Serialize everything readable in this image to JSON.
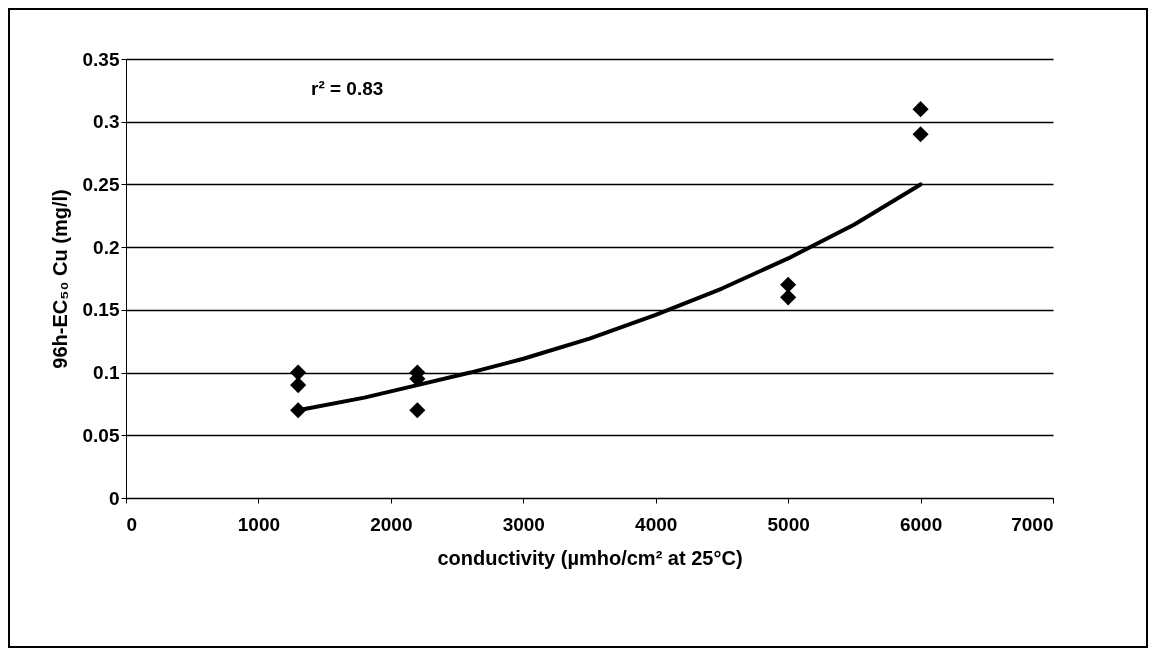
{
  "chart_data": {
    "type": "scatter",
    "xlabel": "conductivity (µmho/cm² at 25°C)",
    "ylabel": "96h-EC₅₀ Cu (mg/l)",
    "annotations": [
      "r² = 0.83"
    ],
    "xlim": [
      0,
      7000
    ],
    "xticks": [
      0,
      1000,
      2000,
      3000,
      4000,
      5000,
      6000,
      7000
    ],
    "ylim": [
      0,
      0.35
    ],
    "yticks": [
      0,
      0.05,
      0.1,
      0.15,
      0.2,
      0.25,
      0.3,
      0.35
    ],
    "grid": "y",
    "series": [
      {
        "type": "scatter",
        "marker": "diamond",
        "color": "#000000",
        "x": [
          1300,
          1300,
          1300,
          2200,
          2200,
          2200,
          5000,
          5000,
          6000,
          6000
        ],
        "values": [
          0.1,
          0.09,
          0.07,
          0.1,
          0.095,
          0.07,
          0.17,
          0.16,
          0.31,
          0.29
        ]
      },
      {
        "type": "line",
        "line_style": "solid",
        "color": "#000000",
        "x": [
          1300,
          1800,
          2200,
          2600,
          3000,
          3500,
          4000,
          4500,
          5000,
          5500,
          6000
        ],
        "values": [
          0.07,
          0.08,
          0.09,
          0.1,
          0.111,
          0.127,
          0.146,
          0.167,
          0.191,
          0.218,
          0.25
        ]
      }
    ]
  }
}
